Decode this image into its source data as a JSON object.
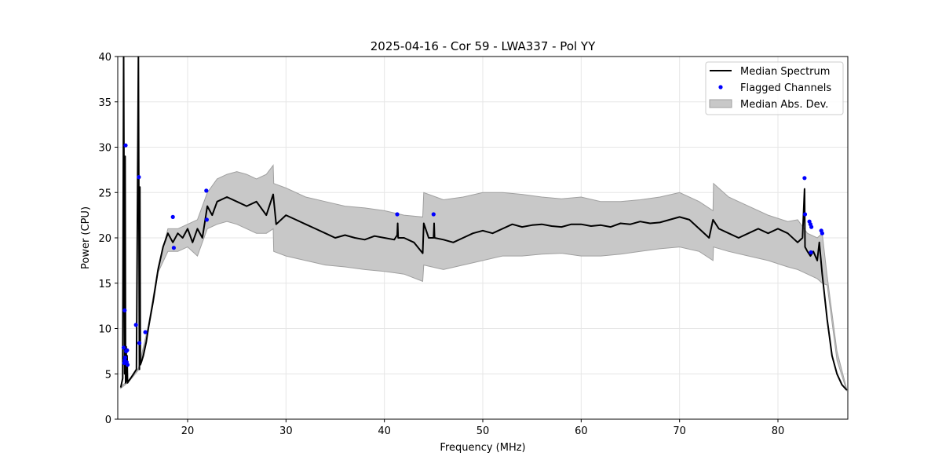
{
  "chart_data": {
    "type": "line",
    "title": "2025-04-16 - Cor 59 - LWA337 - Pol YY",
    "xlabel": "Frequency (MHz)",
    "ylabel": "Power (CPU)",
    "xlim": [
      12.9,
      87.1
    ],
    "ylim": [
      0,
      40
    ],
    "xticks": [
      20,
      30,
      40,
      50,
      60,
      70,
      80
    ],
    "yticks": [
      0,
      5,
      10,
      15,
      20,
      25,
      30,
      35,
      40
    ],
    "grid": true,
    "legend_position": "top-right",
    "legend": [
      "Median Spectrum",
      "Flagged Channels",
      "Median Abs. Dev."
    ],
    "colors": {
      "median": "#000000",
      "flagged": "#0000ff",
      "mad_fill": "#c8c8c8",
      "mad_edge": "#a0a0a0"
    },
    "series": [
      {
        "name": "Median Spectrum",
        "x": [
          13.2,
          13.4,
          13.5,
          13.6,
          13.65,
          13.7,
          13.75,
          13.8,
          13.85,
          13.9,
          14.0,
          14.2,
          14.5,
          14.8,
          15.0,
          15.1,
          15.15,
          15.2,
          15.3,
          15.5,
          15.8,
          16.0,
          16.5,
          17.0,
          17.5,
          18.0,
          18.5,
          19.0,
          19.5,
          20.0,
          20.5,
          21.0,
          21.5,
          22.0,
          22.5,
          23.0,
          24.0,
          25.0,
          26.0,
          27.0,
          28.0,
          28.7,
          29.0,
          30.0,
          31.0,
          32.0,
          33.0,
          34.0,
          35.0,
          36.0,
          37.0,
          38.0,
          39.0,
          40.0,
          41.0,
          41.3,
          41.35,
          41.4,
          42.0,
          43.0,
          43.9,
          44.0,
          44.5,
          45.0,
          45.05,
          45.1,
          46.0,
          47.0,
          48.0,
          49.0,
          50.0,
          51.0,
          52.0,
          53.0,
          54.0,
          55.0,
          56.0,
          57.0,
          58.0,
          59.0,
          60.0,
          61.0,
          62.0,
          63.0,
          64.0,
          65.0,
          66.0,
          67.0,
          68.0,
          69.0,
          70.0,
          71.0,
          72.0,
          73.0,
          73.4,
          74.0,
          75.0,
          76.0,
          77.0,
          78.0,
          79.0,
          80.0,
          81.0,
          82.0,
          82.5,
          82.7,
          82.75,
          83.0,
          83.3,
          83.6,
          84.0,
          84.2,
          84.5,
          85.0,
          85.5,
          86.0,
          86.5,
          87.0
        ],
        "y": [
          3.5,
          4.5,
          40,
          5.0,
          29,
          4.0,
          8,
          4.2,
          7,
          4.0,
          4.2,
          4.5,
          5.0,
          5.5,
          40,
          5.5,
          25.6,
          6.0,
          6.3,
          7.0,
          8.5,
          10.0,
          13.0,
          16.5,
          19.0,
          20.5,
          19.5,
          20.5,
          20.0,
          21.0,
          19.5,
          21.0,
          20.0,
          23.5,
          22.5,
          24.0,
          24.5,
          24.0,
          23.5,
          24.0,
          22.5,
          24.8,
          21.5,
          22.5,
          22.0,
          21.5,
          21.0,
          20.5,
          20.0,
          20.3,
          20.0,
          19.8,
          20.2,
          20.0,
          19.8,
          20.3,
          21.6,
          20.0,
          20.0,
          19.5,
          18.3,
          21.6,
          20.0,
          20.0,
          21.6,
          20.0,
          19.8,
          19.5,
          20.0,
          20.5,
          20.8,
          20.5,
          21.0,
          21.5,
          21.2,
          21.4,
          21.5,
          21.3,
          21.2,
          21.5,
          21.5,
          21.3,
          21.4,
          21.2,
          21.6,
          21.5,
          21.8,
          21.6,
          21.7,
          22.0,
          22.3,
          22.0,
          21.0,
          20.0,
          22.0,
          21.0,
          20.5,
          20.0,
          20.5,
          21.0,
          20.5,
          21.0,
          20.5,
          19.5,
          20.0,
          25.4,
          19.0,
          18.5,
          18.0,
          18.5,
          17.5,
          19.5,
          16.0,
          11.0,
          7.0,
          5.0,
          3.8,
          3.2
        ]
      },
      {
        "name": "Median Abs. Dev.",
        "x": [
          13.2,
          14.0,
          15.0,
          16.0,
          17.0,
          18.0,
          19.0,
          20.0,
          21.0,
          22.0,
          23.0,
          24.0,
          25.0,
          26.0,
          27.0,
          28.0,
          28.7,
          28.75,
          30.0,
          32.0,
          34.0,
          36.0,
          38.0,
          40.0,
          42.0,
          43.9,
          44.0,
          46.0,
          48.0,
          50.0,
          52.0,
          54.0,
          56.0,
          58.0,
          60.0,
          62.0,
          64.0,
          66.0,
          68.0,
          70.0,
          72.0,
          73.4,
          73.45,
          75.0,
          77.0,
          79.0,
          81.0,
          82.0,
          83.0,
          84.0,
          84.5,
          85.0,
          86.0,
          87.0
        ],
        "upper": [
          3.6,
          4.3,
          5.6,
          10.3,
          16.8,
          21.0,
          21.0,
          21.5,
          22.0,
          25.0,
          26.5,
          27.0,
          27.3,
          27.0,
          26.5,
          27.0,
          28.0,
          26.0,
          25.5,
          24.5,
          24.0,
          23.5,
          23.3,
          23.0,
          22.5,
          22.3,
          25.0,
          24.2,
          24.5,
          25.0,
          25.0,
          24.8,
          24.5,
          24.3,
          24.5,
          24.0,
          24.0,
          24.2,
          24.5,
          25.0,
          24.0,
          23.0,
          26.0,
          24.5,
          23.5,
          22.5,
          21.8,
          22.0,
          20.5,
          20.0,
          20.5,
          15.8,
          7.5,
          3.3
        ],
        "lower": [
          3.4,
          4.1,
          5.4,
          9.7,
          16.2,
          18.5,
          18.5,
          19.0,
          18.0,
          21.0,
          21.5,
          21.8,
          21.5,
          21.0,
          20.5,
          20.5,
          21.0,
          18.5,
          18.0,
          17.5,
          17.0,
          16.8,
          16.5,
          16.3,
          16.0,
          15.2,
          17.0,
          16.5,
          17.0,
          17.5,
          18.0,
          18.0,
          18.2,
          18.3,
          18.0,
          18.0,
          18.2,
          18.5,
          18.8,
          19.0,
          18.5,
          17.5,
          19.0,
          18.5,
          18.0,
          17.5,
          16.8,
          16.5,
          16.0,
          15.5,
          15.0,
          14.8,
          6.5,
          3.1
        ]
      },
      {
        "name": "Flagged Channels",
        "x": [
          13.5,
          13.55,
          13.6,
          13.6,
          13.65,
          13.7,
          13.75,
          13.8,
          13.85,
          13.9,
          14.75,
          15.05,
          15.1,
          15.7,
          18.5,
          18.6,
          21.9,
          21.95,
          41.3,
          45.0,
          82.7,
          82.75,
          83.2,
          83.3,
          83.35,
          83.4,
          84.4,
          84.5
        ],
        "y": [
          7.9,
          6.2,
          12.0,
          6.5,
          6.8,
          30.2,
          7.5,
          6.3,
          7.6,
          6.0,
          10.4,
          26.7,
          8.4,
          9.6,
          22.3,
          18.9,
          25.2,
          22.0,
          22.6,
          22.6,
          26.6,
          22.6,
          21.8,
          21.5,
          18.4,
          21.2,
          20.8,
          20.5
        ]
      }
    ]
  }
}
